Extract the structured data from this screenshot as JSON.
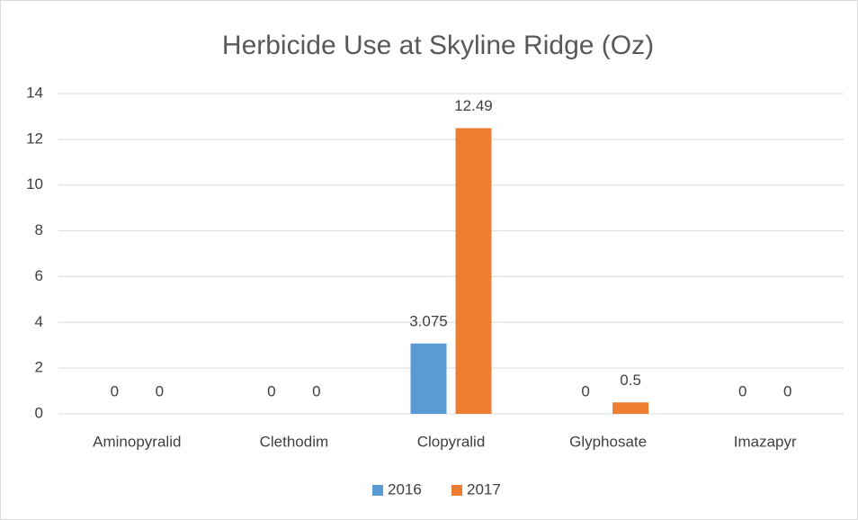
{
  "chart_data": {
    "type": "bar",
    "title": "Herbicide Use at Skyline Ridge (Oz)",
    "categories": [
      "Aminopyralid",
      "Clethodim",
      "Clopyralid",
      "Glyphosate",
      "Imazapyr"
    ],
    "series": [
      {
        "name": "2016",
        "color": "#5b9bd5",
        "values": [
          0,
          0,
          3.075,
          0,
          0
        ]
      },
      {
        "name": "2017",
        "color": "#ed7d31",
        "values": [
          0,
          0,
          12.49,
          0.5,
          0
        ]
      }
    ],
    "ylim": [
      0,
      14
    ],
    "yticks": [
      0,
      2,
      4,
      6,
      8,
      10,
      12,
      14
    ],
    "grid": true,
    "legend": "bottom",
    "data_labels": true
  }
}
